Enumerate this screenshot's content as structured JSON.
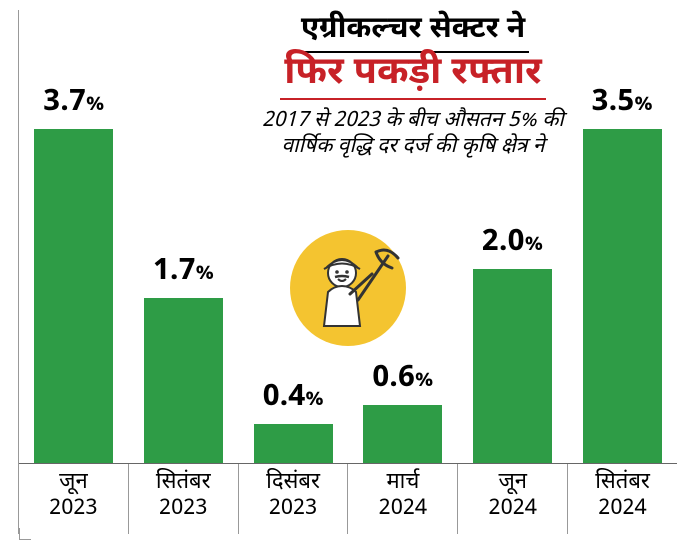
{
  "chart": {
    "type": "bar",
    "title_line1": "एग्रीकल्चर सेक्टर ने",
    "title_line2": "फिर पकड़ी रफ्तार",
    "subtitle": "2017 से 2023 के बीच औसतन 5% की\nवार्षिक वृद्धि दर दर्ज की कृषि क्षेत्र ने",
    "title1_fontsize": 30,
    "title2_fontsize": 38,
    "subtitle_fontsize": 21,
    "title1_color": "#000000",
    "title2_color": "#c72127",
    "subtitle_color": "#000000",
    "percent_symbol": "%",
    "bars": [
      {
        "month": "जून",
        "year": "2023",
        "value": 3.7,
        "display": "3.7",
        "color": "#2e9c46"
      },
      {
        "month": "सितंबर",
        "year": "2023",
        "value": 1.7,
        "display": "1.7",
        "color": "#2e9c46"
      },
      {
        "month": "दिसंबर",
        "year": "2023",
        "value": 0.4,
        "display": "0.4",
        "color": "#2e9c46"
      },
      {
        "month": "मार्च",
        "year": "2024",
        "value": 0.6,
        "display": "0.6",
        "color": "#2e9c46"
      },
      {
        "month": "जून",
        "year": "2024",
        "value": 2.0,
        "display": "2.0",
        "color": "#2e9c46"
      },
      {
        "month": "सितंबर",
        "year": "2024",
        "value": 3.5,
        "display": "3.5",
        "color": "#2e9c46"
      }
    ],
    "value_label_fontsize": 30,
    "axis_label_fontsize": 22,
    "bar_width_pct": 72,
    "y_max_visual": 3.9,
    "axis_line_color": "#666666",
    "divider_color": "#999999",
    "background_color": "#ffffff",
    "icon": {
      "name": "farmer-icon",
      "bg_color": "#f4c430",
      "line_color": "#333333",
      "fill_color": "#ffffff",
      "radius": 60
    }
  }
}
